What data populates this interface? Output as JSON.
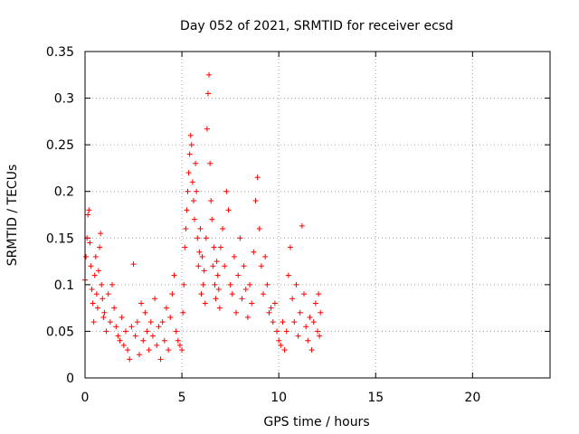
{
  "chart_data": {
    "type": "scatter",
    "title": "Day 052 of 2021, SRMTID for receiver ecsd",
    "xlabel": "GPS time / hours",
    "ylabel": "SRMTID / TECUs",
    "xlim": [
      0,
      24
    ],
    "ylim": [
      0,
      0.35
    ],
    "xticks": [
      0,
      5,
      10,
      15,
      20
    ],
    "xtick_labels": [
      "0",
      "5",
      "10",
      "15",
      "20"
    ],
    "yticks": [
      0,
      0.05,
      0.1,
      0.15,
      0.2,
      0.25,
      0.3,
      0.35
    ],
    "ytick_labels": [
      "0",
      "0.05",
      "0.1",
      "0.15",
      "0.2",
      "0.25",
      "0.3",
      "0.35"
    ],
    "grid": true,
    "marker": "plus",
    "color": "#ff0000",
    "series": [
      {
        "name": "SRMTID",
        "points": [
          [
            0.0,
            0.105
          ],
          [
            0.05,
            0.13
          ],
          [
            0.1,
            0.15
          ],
          [
            0.15,
            0.175
          ],
          [
            0.2,
            0.18
          ],
          [
            0.25,
            0.145
          ],
          [
            0.3,
            0.12
          ],
          [
            0.35,
            0.095
          ],
          [
            0.4,
            0.08
          ],
          [
            0.45,
            0.06
          ],
          [
            0.5,
            0.11
          ],
          [
            0.55,
            0.13
          ],
          [
            0.6,
            0.09
          ],
          [
            0.65,
            0.075
          ],
          [
            0.7,
            0.115
          ],
          [
            0.75,
            0.14
          ],
          [
            0.8,
            0.155
          ],
          [
            0.85,
            0.1
          ],
          [
            0.9,
            0.085
          ],
          [
            0.95,
            0.065
          ],
          [
            1.0,
            0.07
          ],
          [
            1.1,
            0.05
          ],
          [
            1.2,
            0.09
          ],
          [
            1.3,
            0.06
          ],
          [
            1.4,
            0.1
          ],
          [
            1.5,
            0.075
          ],
          [
            1.6,
            0.055
          ],
          [
            1.7,
            0.045
          ],
          [
            1.8,
            0.04
          ],
          [
            1.9,
            0.065
          ],
          [
            2.0,
            0.035
          ],
          [
            2.1,
            0.05
          ],
          [
            2.2,
            0.03
          ],
          [
            2.3,
            0.02
          ],
          [
            2.4,
            0.055
          ],
          [
            2.5,
            0.122
          ],
          [
            2.6,
            0.045
          ],
          [
            2.7,
            0.06
          ],
          [
            2.8,
            0.025
          ],
          [
            2.9,
            0.08
          ],
          [
            3.0,
            0.04
          ],
          [
            3.1,
            0.07
          ],
          [
            3.2,
            0.05
          ],
          [
            3.3,
            0.03
          ],
          [
            3.4,
            0.06
          ],
          [
            3.5,
            0.045
          ],
          [
            3.6,
            0.085
          ],
          [
            3.7,
            0.035
          ],
          [
            3.8,
            0.055
          ],
          [
            3.9,
            0.02
          ],
          [
            4.0,
            0.06
          ],
          [
            4.1,
            0.04
          ],
          [
            4.2,
            0.075
          ],
          [
            4.3,
            0.03
          ],
          [
            4.4,
            0.065
          ],
          [
            4.5,
            0.09
          ],
          [
            4.6,
            0.11
          ],
          [
            4.7,
            0.05
          ],
          [
            4.8,
            0.04
          ],
          [
            4.9,
            0.035
          ],
          [
            5.0,
            0.03
          ],
          [
            5.05,
            0.07
          ],
          [
            5.1,
            0.1
          ],
          [
            5.15,
            0.14
          ],
          [
            5.2,
            0.16
          ],
          [
            5.25,
            0.18
          ],
          [
            5.3,
            0.2
          ],
          [
            5.35,
            0.22
          ],
          [
            5.4,
            0.24
          ],
          [
            5.45,
            0.26
          ],
          [
            5.5,
            0.25
          ],
          [
            5.55,
            0.21
          ],
          [
            5.6,
            0.19
          ],
          [
            5.65,
            0.17
          ],
          [
            5.7,
            0.23
          ],
          [
            5.75,
            0.2
          ],
          [
            5.8,
            0.15
          ],
          [
            5.85,
            0.12
          ],
          [
            5.9,
            0.135
          ],
          [
            5.95,
            0.16
          ],
          [
            6.0,
            0.09
          ],
          [
            6.05,
            0.13
          ],
          [
            6.1,
            0.1
          ],
          [
            6.15,
            0.115
          ],
          [
            6.2,
            0.08
          ],
          [
            6.25,
            0.15
          ],
          [
            6.3,
            0.267
          ],
          [
            6.35,
            0.305
          ],
          [
            6.4,
            0.325
          ],
          [
            6.45,
            0.23
          ],
          [
            6.5,
            0.19
          ],
          [
            6.55,
            0.17
          ],
          [
            6.6,
            0.12
          ],
          [
            6.65,
            0.14
          ],
          [
            6.7,
            0.1
          ],
          [
            6.75,
            0.085
          ],
          [
            6.8,
            0.125
          ],
          [
            6.85,
            0.11
          ],
          [
            6.9,
            0.095
          ],
          [
            6.95,
            0.075
          ],
          [
            7.0,
            0.14
          ],
          [
            7.1,
            0.16
          ],
          [
            7.2,
            0.12
          ],
          [
            7.3,
            0.2
          ],
          [
            7.4,
            0.18
          ],
          [
            7.5,
            0.1
          ],
          [
            7.6,
            0.09
          ],
          [
            7.7,
            0.13
          ],
          [
            7.8,
            0.07
          ],
          [
            7.9,
            0.11
          ],
          [
            8.0,
            0.15
          ],
          [
            8.1,
            0.085
          ],
          [
            8.2,
            0.12
          ],
          [
            8.3,
            0.095
          ],
          [
            8.4,
            0.065
          ],
          [
            8.5,
            0.1
          ],
          [
            8.6,
            0.08
          ],
          [
            8.7,
            0.135
          ],
          [
            8.8,
            0.19
          ],
          [
            8.9,
            0.215
          ],
          [
            9.0,
            0.16
          ],
          [
            9.1,
            0.12
          ],
          [
            9.2,
            0.09
          ],
          [
            9.3,
            0.13
          ],
          [
            9.4,
            0.1
          ],
          [
            9.5,
            0.07
          ],
          [
            9.6,
            0.075
          ],
          [
            9.7,
            0.06
          ],
          [
            9.8,
            0.08
          ],
          [
            9.9,
            0.05
          ],
          [
            10.0,
            0.04
          ],
          [
            10.1,
            0.035
          ],
          [
            10.2,
            0.06
          ],
          [
            10.3,
            0.03
          ],
          [
            10.4,
            0.05
          ],
          [
            10.5,
            0.11
          ],
          [
            10.6,
            0.14
          ],
          [
            10.7,
            0.085
          ],
          [
            10.8,
            0.06
          ],
          [
            10.9,
            0.1
          ],
          [
            11.0,
            0.045
          ],
          [
            11.1,
            0.07
          ],
          [
            11.2,
            0.163
          ],
          [
            11.3,
            0.09
          ],
          [
            11.4,
            0.055
          ],
          [
            11.5,
            0.04
          ],
          [
            11.6,
            0.065
          ],
          [
            11.7,
            0.03
          ],
          [
            11.8,
            0.06
          ],
          [
            11.9,
            0.08
          ],
          [
            12.0,
            0.05
          ],
          [
            12.05,
            0.09
          ],
          [
            12.1,
            0.045
          ],
          [
            12.15,
            0.07
          ]
        ]
      }
    ]
  }
}
